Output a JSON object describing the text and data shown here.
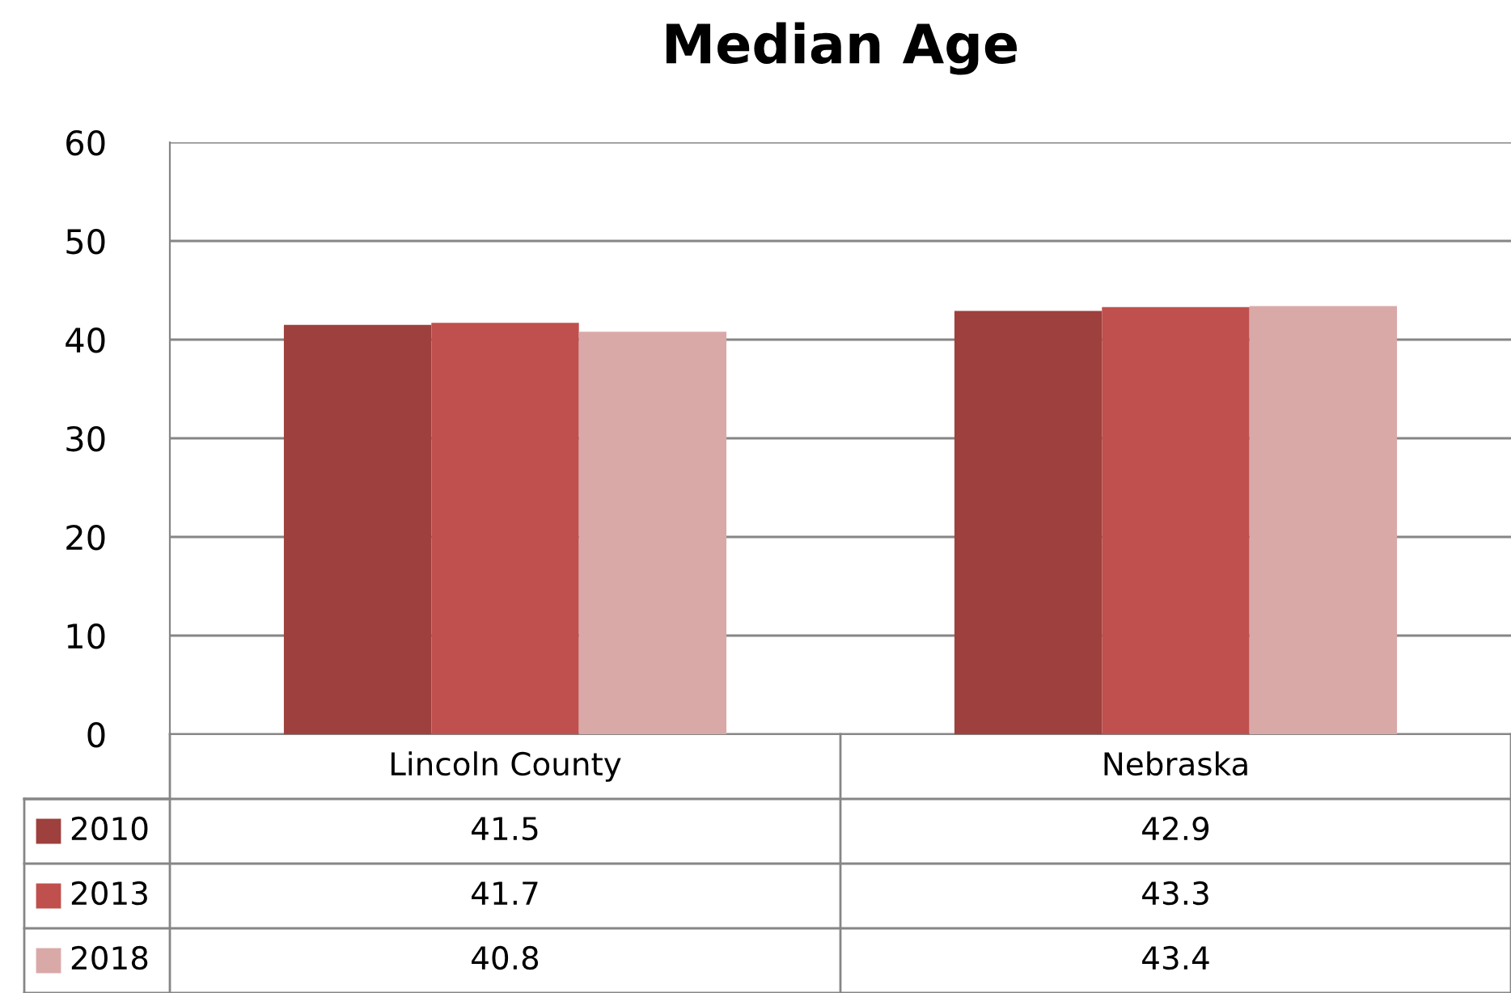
{
  "chart_data": {
    "type": "bar",
    "title": "Median Age",
    "categories": [
      "Lincoln County",
      "Nebraska"
    ],
    "series": [
      {
        "name": "2010",
        "color": "#9e403d",
        "values": [
          41.5,
          42.9
        ]
      },
      {
        "name": "2013",
        "color": "#c0504d",
        "values": [
          41.7,
          43.3
        ]
      },
      {
        "name": "2018",
        "color": "#d9a9a8",
        "values": [
          40.8,
          43.4
        ]
      }
    ],
    "ylim": [
      0,
      60
    ],
    "yticks": [
      0,
      10,
      20,
      30,
      40,
      50,
      60
    ],
    "grid": "y",
    "legend": "bottom",
    "data_labels": true
  }
}
